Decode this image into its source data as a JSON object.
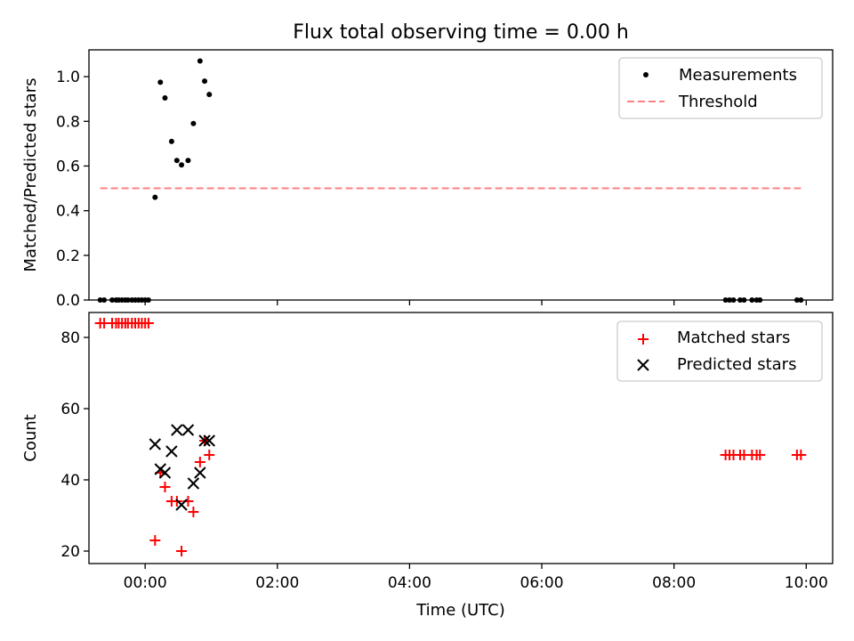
{
  "title": "Flux total observing time = 0.00 h",
  "chart_data": [
    {
      "type": "scatter",
      "panel": "top",
      "ylabel": "Matched/Predicted stars",
      "xlabel": "",
      "xlim": [
        -0.85,
        10.4
      ],
      "ylim": [
        0,
        1.12
      ],
      "yticks": [
        0.0,
        0.2,
        0.4,
        0.6,
        0.8,
        1.0
      ],
      "ytick_labels": [
        "0.0",
        "0.2",
        "0.4",
        "0.6",
        "0.8",
        "1.0"
      ],
      "legend_position": "top-right",
      "series": [
        {
          "name": "Measurements",
          "marker": "dot",
          "color": "#000000",
          "x": [
            -0.68,
            -0.62,
            -0.5,
            -0.44,
            -0.4,
            -0.35,
            -0.3,
            -0.26,
            -0.2,
            -0.15,
            -0.1,
            -0.05,
            0.0,
            0.05,
            0.15,
            0.23,
            0.3,
            0.4,
            0.48,
            0.55,
            0.65,
            0.73,
            0.83,
            0.9,
            0.97,
            8.78,
            8.84,
            8.9,
            9.0,
            9.06,
            9.18,
            9.25,
            9.3,
            9.86,
            9.92
          ],
          "y": [
            0,
            0,
            0,
            0,
            0,
            0,
            0,
            0,
            0,
            0,
            0,
            0,
            0,
            0,
            0.46,
            0.975,
            0.905,
            0.71,
            0.625,
            0.605,
            0.625,
            0.79,
            1.07,
            0.98,
            0.92,
            0,
            0,
            0,
            0,
            0,
            0,
            0,
            0,
            0,
            0
          ]
        },
        {
          "name": "Threshold",
          "line_style": "dashed",
          "color": "#ff8080",
          "x": [
            -0.68,
            9.92
          ],
          "y": [
            0.5,
            0.5
          ]
        }
      ]
    },
    {
      "type": "scatter",
      "panel": "bottom",
      "ylabel": "Count",
      "xlabel": "Time (UTC)",
      "xlim": [
        -0.85,
        10.4
      ],
      "ylim": [
        16.5,
        87
      ],
      "yticks": [
        20,
        40,
        60,
        80
      ],
      "ytick_labels": [
        "20",
        "40",
        "60",
        "80"
      ],
      "xticks": [
        0,
        2,
        4,
        6,
        8,
        10
      ],
      "xtick_labels": [
        "00:00",
        "02:00",
        "04:00",
        "06:00",
        "08:00",
        "10:00"
      ],
      "legend_position": "top-right",
      "series": [
        {
          "name": "Matched stars",
          "marker": "plus",
          "color": "#ff0000",
          "x": [
            -0.68,
            -0.62,
            -0.5,
            -0.44,
            -0.4,
            -0.35,
            -0.3,
            -0.26,
            -0.2,
            -0.15,
            -0.1,
            -0.05,
            0.0,
            0.05,
            0.15,
            0.23,
            0.3,
            0.4,
            0.48,
            0.55,
            0.65,
            0.73,
            0.83,
            0.9,
            0.97,
            8.78,
            8.84,
            8.9,
            9.0,
            9.06,
            9.18,
            9.25,
            9.3,
            9.86,
            9.92
          ],
          "y": [
            84,
            84,
            84,
            84,
            84,
            84,
            84,
            84,
            84,
            84,
            84,
            84,
            84,
            84,
            23,
            42,
            38,
            34,
            34,
            20,
            34,
            31,
            45,
            51,
            47,
            47,
            47,
            47,
            47,
            47,
            47,
            47,
            47,
            47,
            47
          ]
        },
        {
          "name": "Predicted stars",
          "marker": "x",
          "color": "#000000",
          "x": [
            0.15,
            0.23,
            0.3,
            0.4,
            0.48,
            0.55,
            0.65,
            0.73,
            0.83,
            0.9,
            0.97
          ],
          "y": [
            50,
            43,
            42,
            48,
            54,
            33,
            54,
            39,
            42,
            51,
            51
          ]
        }
      ]
    }
  ]
}
